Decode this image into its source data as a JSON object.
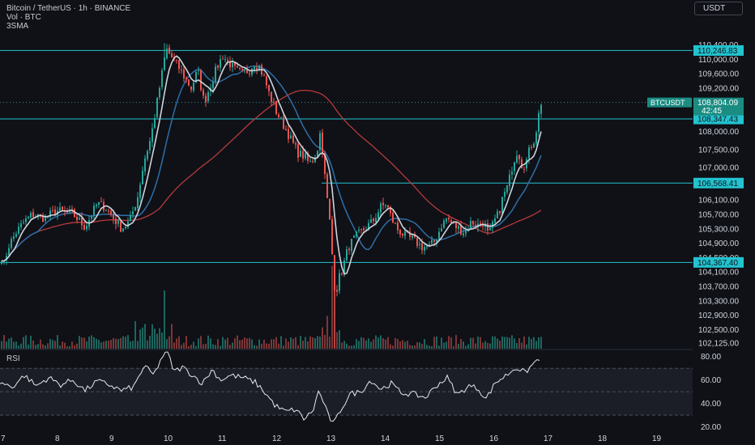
{
  "header": {
    "symbol_line": "Bitcoin / TetherUS · 1h · BINANCE",
    "volume_line": "Vol · BTC",
    "indicator_line": "3SMA",
    "currency_button": "USDT"
  },
  "rsi_title": "RSI",
  "colors": {
    "background": "#0f1117",
    "bull": "#26a69a",
    "bear": "#ef5350",
    "level_line": "#22c3cf",
    "sma_fast": "#cfd3da",
    "sma_mid": "#2f6ea8",
    "sma_slow": "#b83a3a",
    "rsi_line": "#e6e8ec"
  },
  "chart_data": [
    {
      "type": "candlestick",
      "price_axis_labels": [
        "110,400.00",
        "110,000.00",
        "109,600.00",
        "109,200.00",
        "108,000.00",
        "107,500.00",
        "107,000.00",
        "106,100.00",
        "105,700.00",
        "105,300.00",
        "104,900.00",
        "104,500.00",
        "104,100.00",
        "103,700.00",
        "103,300.00",
        "102,900.00",
        "102,500.00",
        "102,125.00"
      ],
      "x_tick_labels": [
        "7",
        "8",
        "9",
        "10",
        "11",
        "12",
        "13",
        "14",
        "15",
        "16",
        "17",
        "18",
        "19"
      ],
      "ylim": [
        101950,
        110750
      ],
      "price_anchors": [
        [
          0,
          104700
        ],
        [
          5,
          104300
        ],
        [
          10,
          104800
        ],
        [
          20,
          105200
        ],
        [
          30,
          105500
        ],
        [
          40,
          105700
        ],
        [
          55,
          105600
        ],
        [
          70,
          105800
        ],
        [
          90,
          105700
        ],
        [
          105,
          105350
        ],
        [
          120,
          106000
        ],
        [
          130,
          105900
        ],
        [
          140,
          105600
        ],
        [
          150,
          105300
        ],
        [
          160,
          105500
        ],
        [
          170,
          106200
        ],
        [
          178,
          107200
        ],
        [
          186,
          107800
        ],
        [
          193,
          108700
        ],
        [
          200,
          109600
        ],
        [
          205,
          110300
        ],
        [
          212,
          110050
        ],
        [
          220,
          109800
        ],
        [
          228,
          109500
        ],
        [
          236,
          109200
        ],
        [
          244,
          109700
        ],
        [
          252,
          108800
        ],
        [
          260,
          109300
        ],
        [
          268,
          109800
        ],
        [
          275,
          110100
        ],
        [
          283,
          109900
        ],
        [
          291,
          109700
        ],
        [
          299,
          109600
        ],
        [
          307,
          109700
        ],
        [
          314,
          109900
        ],
        [
          320,
          109800
        ],
        [
          326,
          109500
        ],
        [
          333,
          109000
        ],
        [
          340,
          108600
        ],
        [
          347,
          108300
        ],
        [
          354,
          108000
        ],
        [
          361,
          107700
        ],
        [
          368,
          107400
        ],
        [
          376,
          107300
        ],
        [
          382,
          107100
        ],
        [
          388,
          107300
        ],
        [
          393,
          107600
        ],
        [
          396,
          108100
        ],
        [
          399,
          107200
        ],
        [
          403,
          106300
        ],
        [
          407,
          105500
        ],
        [
          411,
          104300
        ],
        [
          414,
          103400
        ],
        [
          418,
          103900
        ],
        [
          423,
          104200
        ],
        [
          430,
          104800
        ],
        [
          440,
          105100
        ],
        [
          450,
          105300
        ],
        [
          460,
          105500
        ],
        [
          470,
          105900
        ],
        [
          477,
          106000
        ],
        [
          483,
          105600
        ],
        [
          490,
          105300
        ],
        [
          500,
          105100
        ],
        [
          510,
          105000
        ],
        [
          520,
          104800
        ],
        [
          530,
          104800
        ],
        [
          538,
          105000
        ],
        [
          545,
          105400
        ],
        [
          552,
          105600
        ],
        [
          560,
          105400
        ],
        [
          567,
          105300
        ],
        [
          574,
          105200
        ],
        [
          582,
          105500
        ],
        [
          590,
          105400
        ],
        [
          597,
          105500
        ],
        [
          603,
          105100
        ],
        [
          610,
          105500
        ],
        [
          615,
          105700
        ],
        [
          621,
          106200
        ],
        [
          627,
          106500
        ],
        [
          633,
          107100
        ],
        [
          639,
          107500
        ],
        [
          645,
          107000
        ],
        [
          650,
          107200
        ],
        [
          655,
          107600
        ],
        [
          660,
          107800
        ],
        [
          664,
          108300
        ],
        [
          667,
          108804
        ]
      ],
      "horizontal_levels": [
        {
          "price": 110246.83,
          "label": "110,246.83"
        },
        {
          "price": 108347.43,
          "label": "108,347.43"
        },
        {
          "price": 106568.41,
          "label": "106,568.41",
          "starts_near_x_day": 13
        }
      ],
      "support_level": {
        "price": 104367.4,
        "label": "104,367.40"
      },
      "last_price": {
        "symbol": "BTCUSDT",
        "price": "108,804.09",
        "countdown": "42:45"
      },
      "volume": {
        "baseline_units": 0,
        "spike_days": [
          "10",
          "13"
        ]
      }
    },
    {
      "type": "line",
      "name": "RSI",
      "y_tick_labels": [
        "80.00",
        "60.00",
        "40.00",
        "20.00"
      ],
      "ylim": [
        17,
        86
      ],
      "band": [
        30,
        70
      ],
      "midline": 50,
      "rsi_anchors": [
        [
          0,
          58
        ],
        [
          15,
          54
        ],
        [
          30,
          64
        ],
        [
          45,
          55
        ],
        [
          60,
          62
        ],
        [
          75,
          56
        ],
        [
          90,
          60
        ],
        [
          105,
          51
        ],
        [
          120,
          59
        ],
        [
          135,
          56
        ],
        [
          150,
          51
        ],
        [
          165,
          54
        ],
        [
          178,
          72
        ],
        [
          190,
          64
        ],
        [
          200,
          80
        ],
        [
          207,
          83
        ],
        [
          215,
          67
        ],
        [
          225,
          71
        ],
        [
          240,
          63
        ],
        [
          250,
          57
        ],
        [
          262,
          69
        ],
        [
          272,
          60
        ],
        [
          285,
          64
        ],
        [
          300,
          62
        ],
        [
          315,
          58
        ],
        [
          325,
          51
        ],
        [
          340,
          38
        ],
        [
          352,
          33
        ],
        [
          365,
          35
        ],
        [
          375,
          27
        ],
        [
          386,
          33
        ],
        [
          393,
          50
        ],
        [
          398,
          44
        ],
        [
          405,
          30
        ],
        [
          412,
          22
        ],
        [
          420,
          34
        ],
        [
          432,
          48
        ],
        [
          445,
          50
        ],
        [
          458,
          60
        ],
        [
          470,
          52
        ],
        [
          483,
          57
        ],
        [
          495,
          49
        ],
        [
          510,
          48
        ],
        [
          525,
          45
        ],
        [
          540,
          56
        ],
        [
          552,
          62
        ],
        [
          565,
          47
        ],
        [
          578,
          55
        ],
        [
          590,
          53
        ],
        [
          600,
          44
        ],
        [
          612,
          58
        ],
        [
          625,
          64
        ],
        [
          637,
          71
        ],
        [
          648,
          66
        ],
        [
          660,
          75
        ],
        [
          668,
          80
        ]
      ]
    }
  ]
}
